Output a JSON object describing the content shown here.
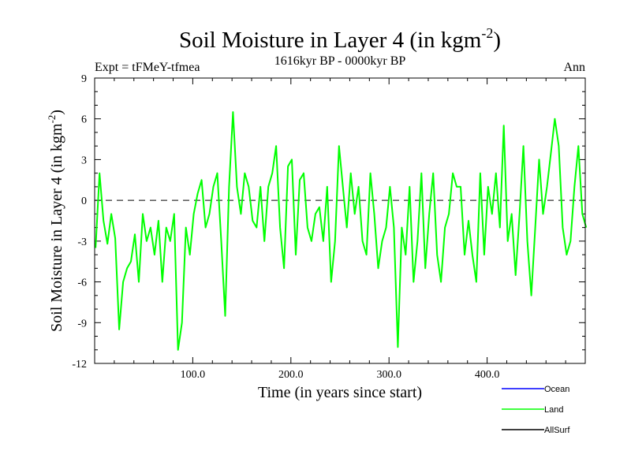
{
  "chart_data": {
    "type": "line",
    "title_main": "Soil Moisture in Layer 4 (in kgm",
    "title_sup": "-2",
    "title_close": ")",
    "subtitle": "1616kyr BP - 0000kyr BP",
    "expt_label": "Expt = tFMeY-tfmea",
    "season_label": "Ann",
    "xlabel": "Time (in years since start)",
    "ylabel_main": "Soil Moisture in Layer 4 (in kgm",
    "ylabel_sup": "-2",
    "ylabel_close": ")",
    "xlim": [
      0,
      500
    ],
    "ylim": [
      -12,
      9
    ],
    "x_ticks": [
      100,
      200,
      300,
      400
    ],
    "x_tick_labels": [
      "100.0",
      "200.0",
      "300.0",
      "400.0"
    ],
    "y_ticks": [
      -12,
      -9,
      -6,
      -3,
      0,
      3,
      6,
      9
    ],
    "y_tick_labels": [
      "-12",
      "-9",
      "-6",
      "-3",
      "0",
      "3",
      "6",
      "9"
    ],
    "zero_line": 0,
    "legend": [
      {
        "name": "Ocean",
        "color": "#0000ff"
      },
      {
        "name": "Land",
        "color": "#00ff00"
      },
      {
        "name": "AllSurf",
        "color": "#000000"
      }
    ],
    "series": [
      {
        "name": "Land",
        "color": "#00ff00",
        "x_start": 1,
        "x_step": 4,
        "values": [
          -3.5,
          2.0,
          -1.5,
          -3.2,
          -1.0,
          -2.8,
          -9.5,
          -6.0,
          -5.0,
          -4.5,
          -2.5,
          -6.0,
          -1.0,
          -3.0,
          -2.0,
          -4.0,
          -1.5,
          -6.0,
          -2.0,
          -3.0,
          -1.0,
          -11.0,
          -9.0,
          -2.0,
          -4.0,
          -1.0,
          0.5,
          1.5,
          -2.0,
          -1.0,
          1.0,
          2.0,
          -3.0,
          -8.5,
          1.0,
          6.5,
          1.0,
          -1.0,
          2.0,
          1.0,
          -1.5,
          -2.0,
          1.0,
          -3.0,
          1.0,
          2.0,
          4.0,
          -2.0,
          -5.0,
          2.5,
          3.0,
          -4.0,
          1.5,
          2.0,
          -2.0,
          -3.0,
          -1.0,
          -0.5,
          -3.0,
          1.0,
          -6.0,
          -3.0,
          4.0,
          1.0,
          -2.0,
          2.0,
          -1.0,
          1.0,
          -3.0,
          -4.0,
          2.0,
          -1.0,
          -5.0,
          -3.0,
          -2.0,
          1.0,
          -2.0,
          -10.8,
          -2.0,
          -4.0,
          1.0,
          -6.0,
          -3.0,
          2.0,
          -5.0,
          -1.0,
          2.0,
          -4.0,
          -6.0,
          -2.0,
          -1.0,
          2.0,
          1.0,
          1.0,
          -4.0,
          -1.5,
          -4.0,
          -6.0,
          2.0,
          -4.0,
          1.0,
          -1.0,
          2.0,
          -2.0,
          5.5,
          -3.0,
          -1.0,
          -5.5,
          -1.0,
          4.0,
          -3.0,
          -7.0,
          -2.0,
          3.0,
          -1.0,
          1.0,
          3.5,
          6.0,
          4.0,
          -2.0,
          -4.0,
          -3.0,
          1.0,
          4.0,
          -1.0,
          -2.0
        ]
      }
    ]
  }
}
